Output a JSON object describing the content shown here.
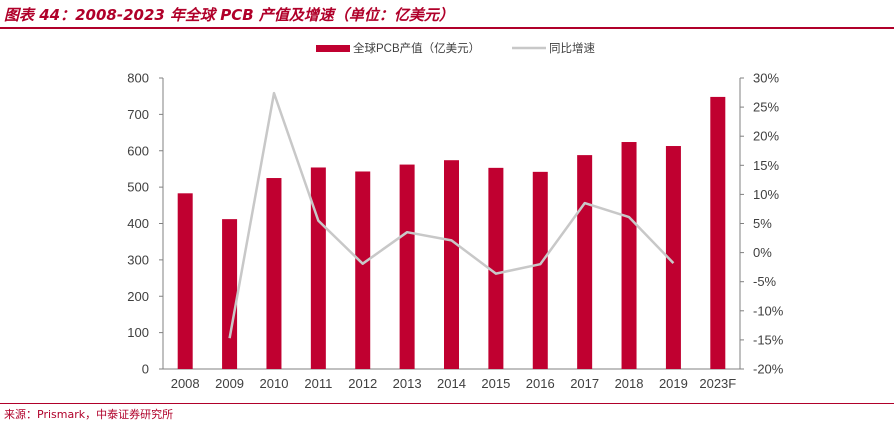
{
  "title": "图表 44：2008-2023 年全球 PCB 产值及增速（单位：亿美元）",
  "source": "来源：Prismark，中泰证券研究所",
  "colors": {
    "accent": "#b0002a",
    "bar": "#c00030",
    "line": "#c8c8c8",
    "axis_text": "#404040"
  },
  "chart_data": {
    "type": "bar",
    "categories": [
      "2008",
      "2009",
      "2010",
      "2011",
      "2012",
      "2013",
      "2014",
      "2015",
      "2016",
      "2017",
      "2018",
      "2019",
      "2023F"
    ],
    "series": [
      {
        "name": "全球PCB产值（亿美元）",
        "type": "bar",
        "axis": "left",
        "values": [
          483,
          412,
          525,
          554,
          543,
          562,
          574,
          553,
          542,
          588,
          624,
          613,
          748
        ]
      },
      {
        "name": "同比增速",
        "type": "line",
        "axis": "right",
        "values": [
          null,
          -14.7,
          27.4,
          5.5,
          -1.9,
          3.5,
          2.1,
          -3.6,
          -2.0,
          8.5,
          6.1,
          -1.8,
          null
        ]
      }
    ],
    "y_left": {
      "lim": [
        0,
        800
      ],
      "ticks": [
        "0",
        "100",
        "200",
        "300",
        "400",
        "500",
        "600",
        "700",
        "800"
      ]
    },
    "y_right": {
      "lim": [
        -20,
        30
      ],
      "ticks": [
        "-20%",
        "-15%",
        "-10%",
        "-5%",
        "0%",
        "5%",
        "10%",
        "15%",
        "20%",
        "25%",
        "30%"
      ]
    },
    "grid": false,
    "legend_position": "top-center"
  }
}
